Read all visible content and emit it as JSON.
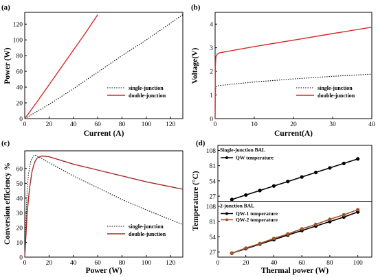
{
  "colors": {
    "red": "#d62728",
    "brown": "#a52a2a",
    "black": "#000000",
    "tan": "#c07850"
  },
  "chart_data": [
    {
      "panel_label": "(a)",
      "type": "line",
      "xlabel": "Current (A)",
      "ylabel": "Power (W)",
      "xlim": [
        0,
        130
      ],
      "ylim": [
        0,
        135
      ],
      "xticks": [
        0,
        20,
        40,
        60,
        80,
        100,
        120
      ],
      "yticks": [
        0,
        20,
        40,
        60,
        80,
        100,
        120
      ],
      "legend_position": "bottom-right",
      "series": [
        {
          "name": "single-junction",
          "style": "dotted",
          "color": "#000000",
          "x": [
            0,
            20,
            40,
            60,
            80,
            100,
            130
          ],
          "y": [
            0,
            18,
            38,
            59,
            80,
            100,
            132
          ]
        },
        {
          "name": "double-junction",
          "style": "solid",
          "color": "#d62728",
          "x": [
            0,
            10,
            20,
            30,
            40,
            50,
            60
          ],
          "y": [
            0,
            21,
            43,
            65,
            87,
            109,
            132
          ]
        }
      ]
    },
    {
      "panel_label": "(b)",
      "type": "line",
      "xlabel": "Current(A)",
      "ylabel": "Voltage(V)",
      "xlim": [
        0,
        40
      ],
      "ylim": [
        0,
        4.5
      ],
      "xticks": [
        0,
        10,
        20,
        30,
        40
      ],
      "yticks": [
        0,
        1,
        2,
        3,
        4
      ],
      "legend_position": "bottom-right",
      "series": [
        {
          "name": "single-junction",
          "style": "dotted",
          "color": "#000000",
          "x": [
            0,
            0.05,
            0.2,
            0.5,
            1,
            5,
            10,
            20,
            30,
            40
          ],
          "y": [
            0,
            1.05,
            1.3,
            1.38,
            1.4,
            1.47,
            1.55,
            1.68,
            1.79,
            1.88
          ]
        },
        {
          "name": "double-junction",
          "style": "solid",
          "color": "#d62728",
          "x": [
            0,
            0.05,
            0.2,
            0.5,
            1,
            5,
            10,
            20,
            30,
            40
          ],
          "y": [
            0,
            2.2,
            2.62,
            2.72,
            2.78,
            2.9,
            3.05,
            3.32,
            3.6,
            3.87
          ]
        }
      ]
    },
    {
      "panel_label": "(c)",
      "type": "line",
      "xlabel": "Power (W)",
      "ylabel": "Conversion efficiency %",
      "xlim": [
        0,
        130
      ],
      "ylim": [
        0,
        72
      ],
      "xticks": [
        0,
        20,
        40,
        60,
        80,
        100,
        120
      ],
      "yticks": [
        0,
        10,
        20,
        30,
        40,
        50,
        60
      ],
      "legend_position": "bottom-right",
      "series": [
        {
          "name": "single-junction",
          "style": "dotted",
          "color": "#000000",
          "x": [
            0,
            1,
            2,
            3,
            5,
            7,
            9,
            20,
            40,
            60,
            80,
            100,
            130
          ],
          "y": [
            0,
            25,
            45,
            56,
            65,
            68.5,
            69,
            64,
            55,
            47,
            39,
            32,
            22
          ]
        },
        {
          "name": "double-junction",
          "style": "solid",
          "color": "#a52a2a",
          "x": [
            0,
            1,
            2,
            4,
            6,
            8,
            10,
            14,
            20,
            40,
            60,
            80,
            100,
            130
          ],
          "y": [
            0,
            15,
            30,
            47,
            58,
            64,
            67,
            68.5,
            68,
            63,
            59,
            55,
            51,
            46
          ]
        }
      ]
    },
    {
      "panel_label": "(d)",
      "type": "line",
      "xlabel": "Thermal power (W)",
      "ylabel": "Temperature (°C)",
      "xlim": [
        0,
        110
      ],
      "xticks": [
        0,
        20,
        40,
        60,
        80,
        100
      ],
      "subplots": [
        {
          "title": "Single-junction BAL",
          "ylim": [
            18,
            117
          ],
          "yticks": [
            27,
            54,
            81,
            108
          ],
          "series": [
            {
              "name": "QW temperature",
              "color": "#000000",
              "marker": "circle",
              "x": [
                10,
                20,
                30,
                40,
                50,
                60,
                70,
                80,
                90,
                100
              ],
              "y": [
                21,
                29,
                37,
                45,
                53,
                61,
                69,
                77,
                85,
                93
              ]
            }
          ]
        },
        {
          "title": "2-junction BAL",
          "ylim": [
            18,
            117
          ],
          "yticks": [
            27,
            54,
            81,
            108
          ],
          "series": [
            {
              "name": "QW-1 temperature",
              "color": "#000000",
              "marker": "circle",
              "x": [
                10,
                20,
                30,
                40,
                50,
                60,
                70,
                80,
                90,
                100
              ],
              "y": [
                25,
                33,
                41,
                49,
                57,
                65,
                73,
                81,
                89,
                98
              ]
            },
            {
              "name": "QW-2 temperature",
              "color": "#a0522d",
              "marker": "circle",
              "x": [
                10,
                20,
                30,
                40,
                50,
                60,
                70,
                80,
                90,
                100
              ],
              "y": [
                25,
                34,
                42,
                51,
                59,
                68,
                76,
                85,
                93,
                102
              ]
            }
          ]
        }
      ]
    }
  ]
}
